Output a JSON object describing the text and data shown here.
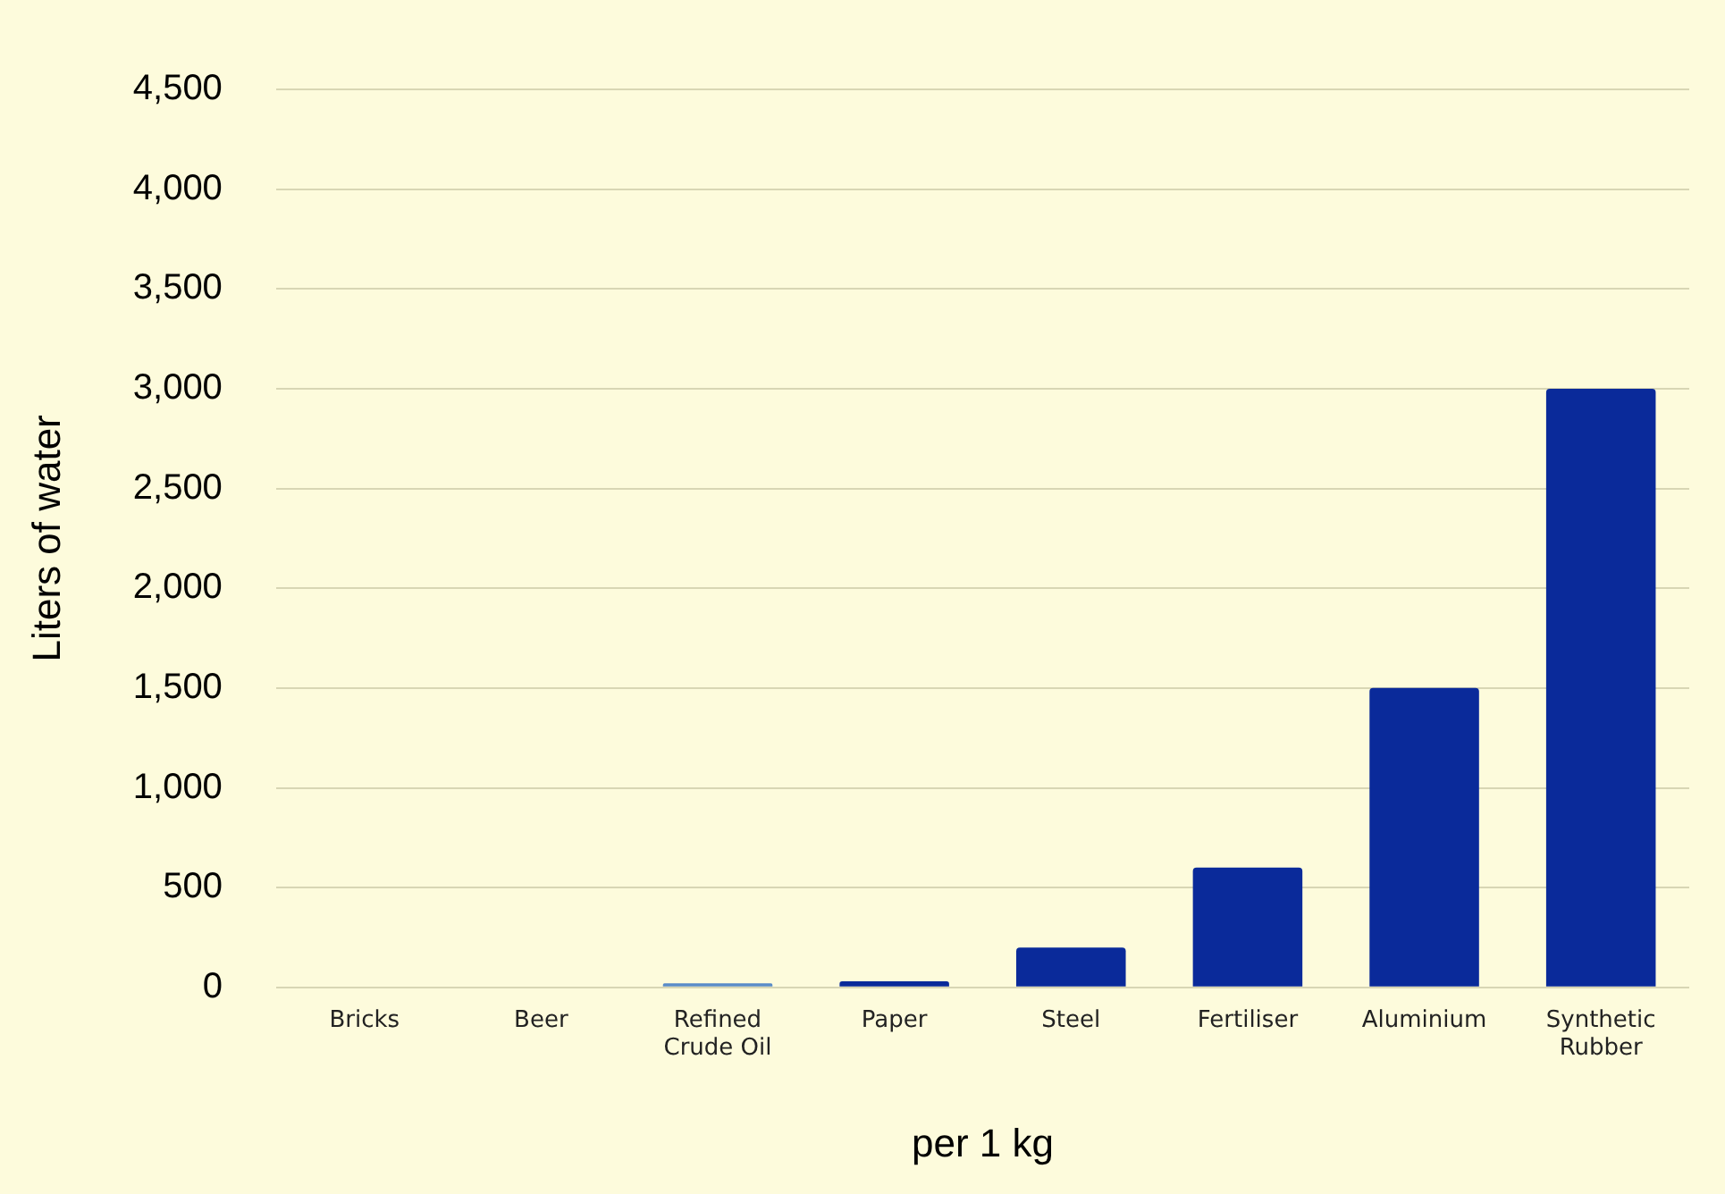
{
  "chart_data": {
    "type": "bar",
    "xlabel": "per 1 kg",
    "ylabel": "Liters of water",
    "categories": [
      "Bricks",
      "Beer",
      "Refined Crude Oil",
      "Paper",
      "Steel",
      "Fertiliser",
      "Aluminium",
      "Synthetic Rubber"
    ],
    "values": [
      0,
      0,
      20,
      30,
      200,
      600,
      1500,
      3000
    ],
    "colors": [
      "#0a2a9a",
      "#0a2a9a",
      "#5a8cc8",
      "#0a2a9a",
      "#0a2a9a",
      "#0a2a9a",
      "#0a2a9a",
      "#0a2a9a"
    ],
    "ylim": [
      0,
      4500
    ],
    "yticks": [
      0,
      500,
      {
        "value": 1000,
        "label": "1,000"
      },
      {
        "value": 1500,
        "label": "1,500"
      },
      {
        "value": 2000,
        "label": "2,000"
      },
      {
        "value": 2500,
        "label": "2,500"
      },
      {
        "value": 3000,
        "label": "3,000"
      },
      {
        "value": 3500,
        "label": "3,500"
      },
      {
        "value": 4000,
        "label": "4,000"
      },
      {
        "value": 4500,
        "label": "4,500"
      }
    ],
    "grid": "y",
    "legend": false
  }
}
